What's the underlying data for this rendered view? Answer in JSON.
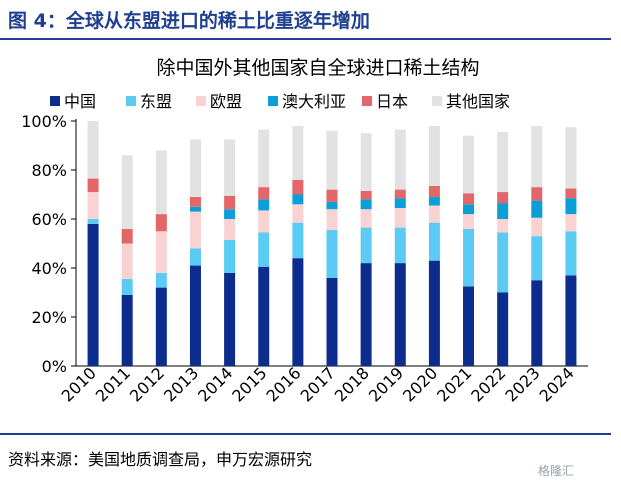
{
  "figure": {
    "label": "图 4：全球从东盟进口的稀土比重逐年增加",
    "source": "资料来源：美国地质调查局，申万宏源研究",
    "watermark": "格隆汇"
  },
  "colors": {
    "brand": "#1f3f8f",
    "中国": "#0c2c8e",
    "东盟": "#5ccbf3",
    "欧盟": "#f8d3d1",
    "澳大利亚": "#0b9fd8",
    "日本": "#e36668",
    "其他国家": "#e2e2e2"
  },
  "chart_data": {
    "type": "bar",
    "stacked": true,
    "title": "除中国外其他国家自全球进口稀土结构",
    "xlabel": "",
    "ylabel": "",
    "ylim": [
      0,
      100
    ],
    "yticks": [
      "0%",
      "20%",
      "40%",
      "60%",
      "80%",
      "100%"
    ],
    "legend_position": "top",
    "grid": false,
    "categories": [
      "2010",
      "2011",
      "2012",
      "2013",
      "2014",
      "2015",
      "2016",
      "2017",
      "2018",
      "2019",
      "2020",
      "2021",
      "2022",
      "2023",
      "2024"
    ],
    "series": [
      {
        "name": "中国",
        "values": [
          58,
          29,
          32,
          41,
          38,
          40.5,
          44,
          36,
          42,
          42,
          43,
          32.5,
          30,
          35,
          37
        ]
      },
      {
        "name": "东盟",
        "values": [
          2,
          6.5,
          6,
          7,
          13.5,
          14,
          14.5,
          19.5,
          14.5,
          14.5,
          15.5,
          23.5,
          24.5,
          18,
          18
        ]
      },
      {
        "name": "欧盟",
        "values": [
          11,
          14.5,
          17,
          15,
          8.5,
          9,
          7.5,
          8.5,
          7.5,
          8,
          7,
          6,
          5.5,
          7.5,
          7
        ]
      },
      {
        "name": "澳大利亚",
        "values": [
          0,
          0,
          0,
          2,
          4,
          4.5,
          4,
          3,
          4,
          4,
          3.5,
          4,
          6.5,
          7,
          6.5
        ]
      },
      {
        "name": "日本",
        "values": [
          5.5,
          6,
          7,
          4,
          5.5,
          5,
          6,
          5,
          3.5,
          3.5,
          4.5,
          4.5,
          4.5,
          5.5,
          4
        ]
      },
      {
        "name": "其他国家",
        "values": [
          23.5,
          30,
          26,
          23.5,
          23,
          23.5,
          22,
          24,
          23.5,
          24.5,
          24.5,
          23.5,
          24.5,
          25,
          25
        ]
      }
    ]
  }
}
